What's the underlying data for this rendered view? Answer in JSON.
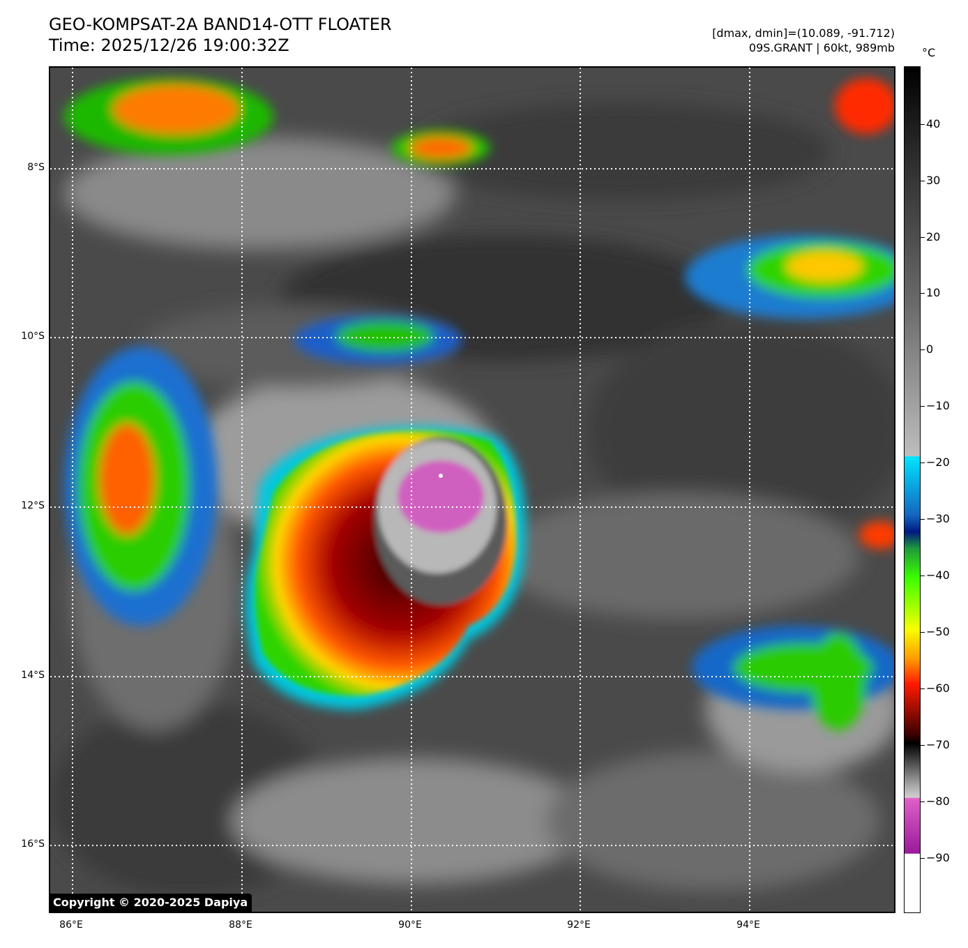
{
  "header": {
    "title_line1": "GEO-KOMPSAT-2A BAND14-OTT FLOATER",
    "title_line2": "Time: 2025/12/26 19:00:32Z",
    "range_text": "[dmax, dmin]=(10.089, -91.712)",
    "storm_text": "09S.GRANT | 60kt, 989mb"
  },
  "map": {
    "lat_labels": [
      "8°S",
      "10°S",
      "12°S",
      "14°S",
      "16°S"
    ],
    "lon_labels": [
      "86°E",
      "88°E",
      "90°E",
      "92°E",
      "94°E"
    ],
    "copyright": "Copyright © 2020-2025 Dapiya"
  },
  "colorbar": {
    "unit": "°C",
    "ticks": [
      "40",
      "30",
      "20",
      "10",
      "0",
      "−10",
      "−20",
      "−30",
      "−40",
      "−50",
      "−60",
      "−70",
      "−80",
      "−90"
    ]
  }
}
